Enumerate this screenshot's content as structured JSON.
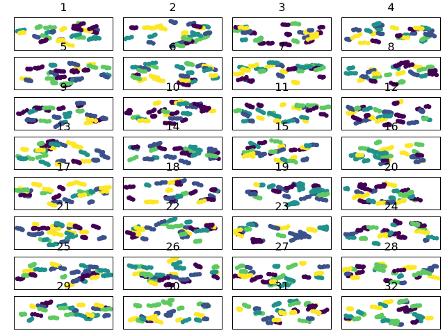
{
  "chart_data": {
    "type": "scatter",
    "title": "",
    "xlabel": "",
    "ylabel": "",
    "grid": false,
    "axes_visible": false,
    "colormap": "viridis",
    "palette": [
      "#440154",
      "#3b528b",
      "#21918c",
      "#5ec962",
      "#fde725"
    ],
    "panels": [
      {
        "title": "1"
      },
      {
        "title": "2"
      },
      {
        "title": "3"
      },
      {
        "title": "4"
      },
      {
        "title": "5"
      },
      {
        "title": "6"
      },
      {
        "title": "7"
      },
      {
        "title": "8"
      },
      {
        "title": "9"
      },
      {
        "title": "10"
      },
      {
        "title": "11"
      },
      {
        "title": "12"
      },
      {
        "title": "13"
      },
      {
        "title": "14"
      },
      {
        "title": "15"
      },
      {
        "title": "16"
      },
      {
        "title": "17"
      },
      {
        "title": "18"
      },
      {
        "title": "19"
      },
      {
        "title": "20"
      },
      {
        "title": "21"
      },
      {
        "title": "22"
      },
      {
        "title": "23"
      },
      {
        "title": "24"
      },
      {
        "title": "25"
      },
      {
        "title": "26"
      },
      {
        "title": "27"
      },
      {
        "title": "28"
      },
      {
        "title": "29"
      },
      {
        "title": "30"
      },
      {
        "title": "31"
      },
      {
        "title": "32"
      }
    ]
  }
}
